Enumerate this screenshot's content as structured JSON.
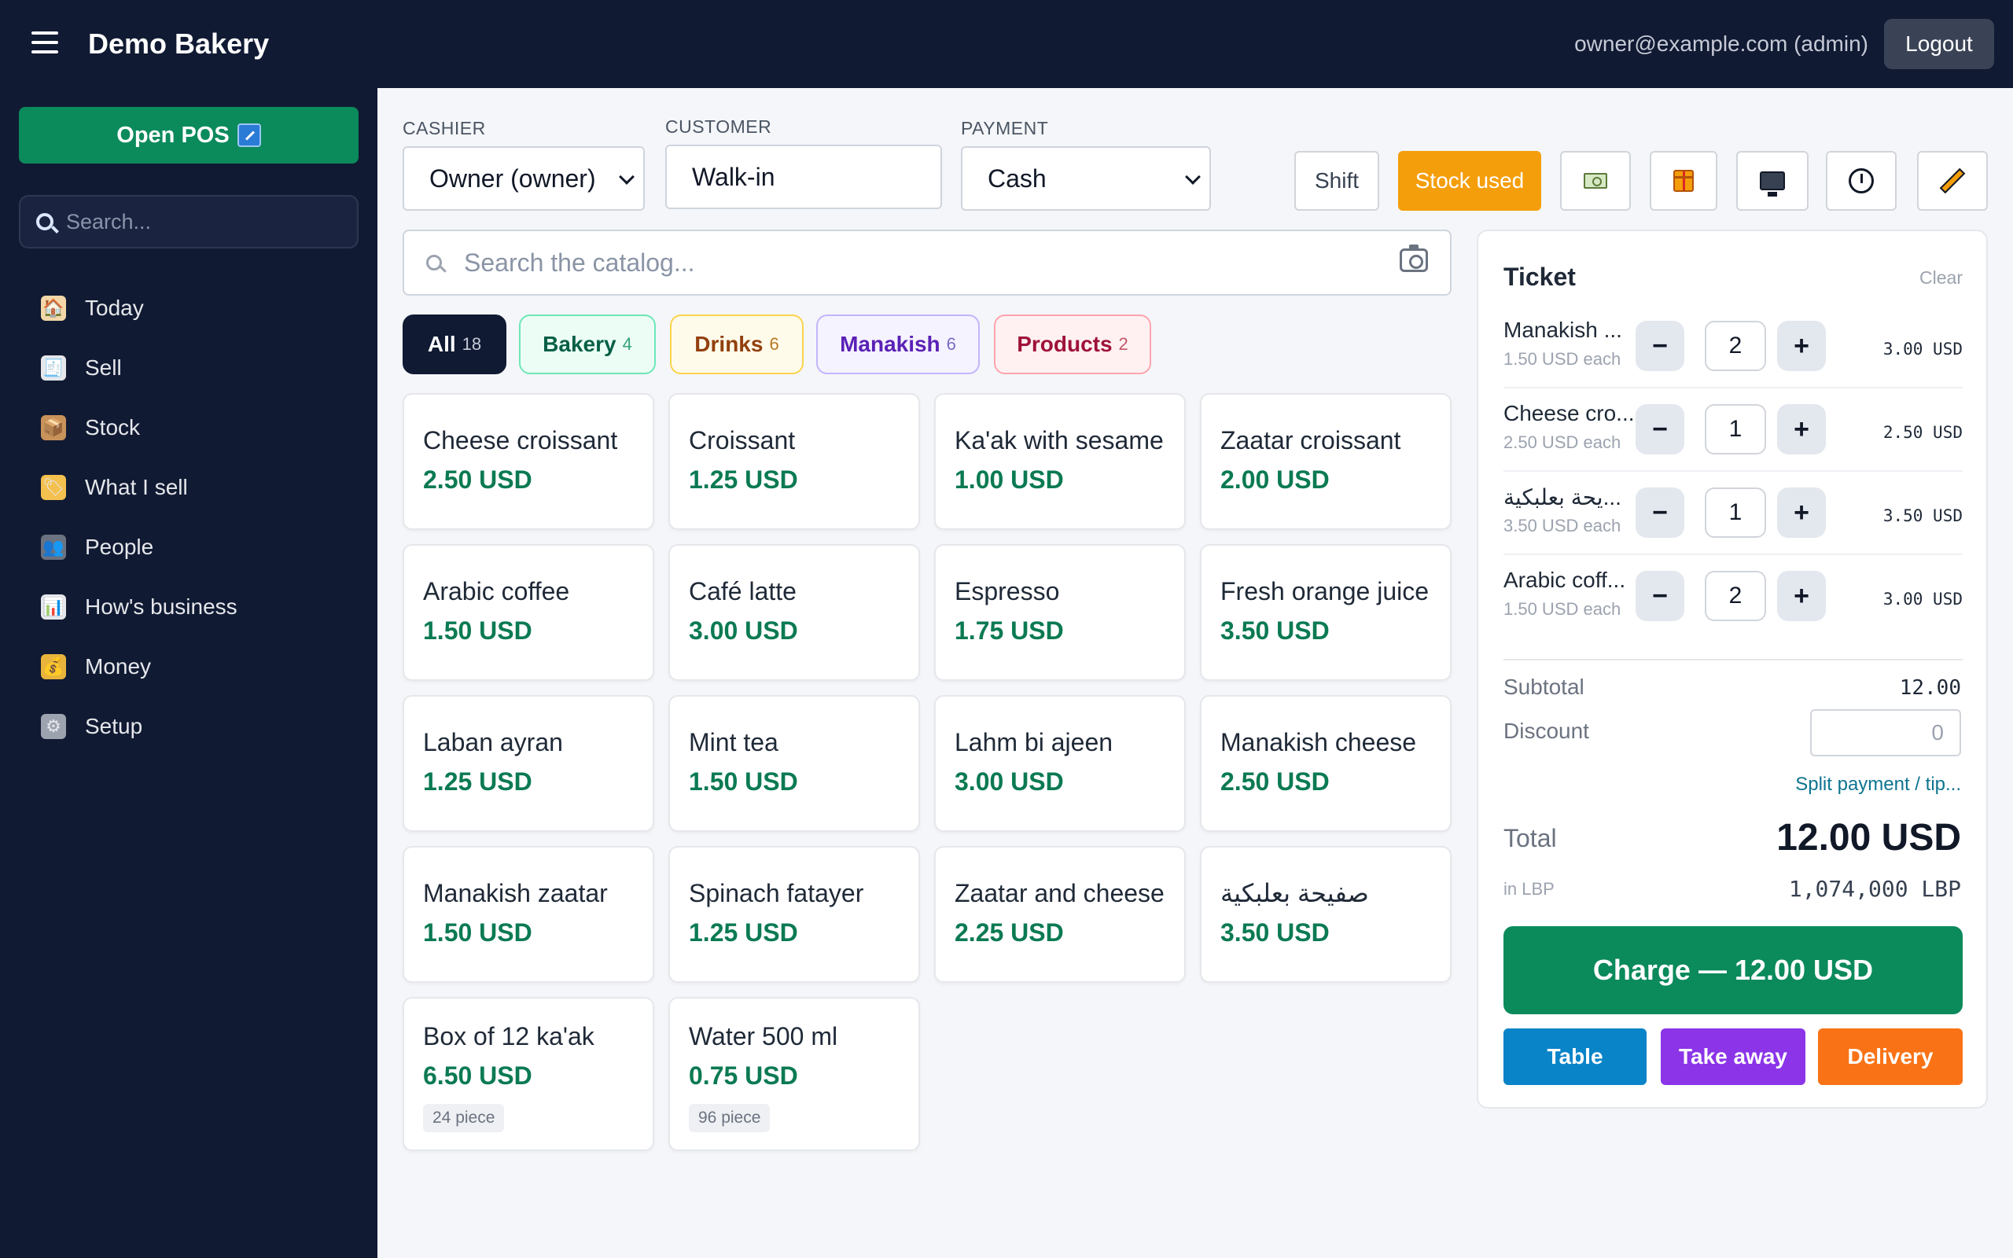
{
  "app": {
    "brand": "Demo Bakery",
    "user": "owner@example.com (admin)",
    "logout_label": "Logout"
  },
  "sidebar": {
    "open_pos_label": "Open POS",
    "search_placeholder": "Search...",
    "items": [
      {
        "label": "Today",
        "icon": "house-icon"
      },
      {
        "label": "Sell",
        "icon": "receipt-icon"
      },
      {
        "label": "Stock",
        "icon": "box-icon"
      },
      {
        "label": "What I sell",
        "icon": "tag-icon"
      },
      {
        "label": "People",
        "icon": "people-icon"
      },
      {
        "label": "How's business",
        "icon": "chart-icon"
      },
      {
        "label": "Money",
        "icon": "money-bag-icon"
      },
      {
        "label": "Setup",
        "icon": "gear-icon"
      }
    ]
  },
  "header": {
    "cashier_label": "CASHIER",
    "cashier_value": "Owner (owner)",
    "customer_label": "CUSTOMER",
    "customer_value": "Walk-in",
    "payment_label": "PAYMENT",
    "payment_value": "Cash",
    "shift_label": "Shift",
    "stock_used_label": "Stock used"
  },
  "catalog": {
    "search_placeholder": "Search the catalog...",
    "categories": [
      {
        "label": "All",
        "count": "18"
      },
      {
        "label": "Bakery",
        "count": "4"
      },
      {
        "label": "Drinks",
        "count": "6"
      },
      {
        "label": "Manakish",
        "count": "6"
      },
      {
        "label": "Products",
        "count": "2"
      }
    ],
    "products": [
      {
        "name": "Cheese croissant",
        "price": "2.50 USD"
      },
      {
        "name": "Croissant",
        "price": "1.25 USD"
      },
      {
        "name": "Ka'ak with sesame",
        "price": "1.00 USD"
      },
      {
        "name": "Zaatar croissant",
        "price": "2.00 USD"
      },
      {
        "name": "Arabic coffee",
        "price": "1.50 USD"
      },
      {
        "name": "Café latte",
        "price": "3.00 USD"
      },
      {
        "name": "Espresso",
        "price": "1.75 USD"
      },
      {
        "name": "Fresh orange juice",
        "price": "3.50 USD"
      },
      {
        "name": "Laban ayran",
        "price": "1.25 USD"
      },
      {
        "name": "Mint tea",
        "price": "1.50 USD"
      },
      {
        "name": "Lahm bi ajeen",
        "price": "3.00 USD"
      },
      {
        "name": "Manakish cheese",
        "price": "2.50 USD"
      },
      {
        "name": "Manakish zaatar",
        "price": "1.50 USD"
      },
      {
        "name": "Spinach fatayer",
        "price": "1.25 USD"
      },
      {
        "name": "Zaatar and cheese",
        "price": "2.25 USD"
      },
      {
        "name": "صفيحة بعلبكية",
        "price": "3.50 USD"
      },
      {
        "name": "Box of 12 ka'ak",
        "price": "6.50 USD",
        "stock": "24 piece"
      },
      {
        "name": "Water 500 ml",
        "price": "0.75 USD",
        "stock": "96 piece"
      }
    ]
  },
  "ticket": {
    "title": "Ticket",
    "clear_label": "Clear",
    "lines": [
      {
        "name": "Manakish ...",
        "unit": "1.50 USD each",
        "qty": "2",
        "total": "3.00 USD"
      },
      {
        "name": "Cheese cro...",
        "unit": "2.50 USD each",
        "qty": "1",
        "total": "2.50 USD"
      },
      {
        "name": "...يحة بعلبكية",
        "unit": "3.50 USD each",
        "qty": "1",
        "total": "3.50 USD"
      },
      {
        "name": "Arabic coff...",
        "unit": "1.50 USD each",
        "qty": "2",
        "total": "3.00 USD"
      }
    ],
    "subtotal_label": "Subtotal",
    "subtotal_value": "12.00",
    "discount_label": "Discount",
    "discount_value": "0",
    "split_label": "Split payment / tip...",
    "total_label": "Total",
    "total_value": "12.00 USD",
    "lbp_label": "in LBP",
    "lbp_value": "1,074,000 LBP",
    "charge_label": "Charge — 12.00 USD",
    "order_types": [
      "Table",
      "Take away",
      "Delivery"
    ]
  }
}
